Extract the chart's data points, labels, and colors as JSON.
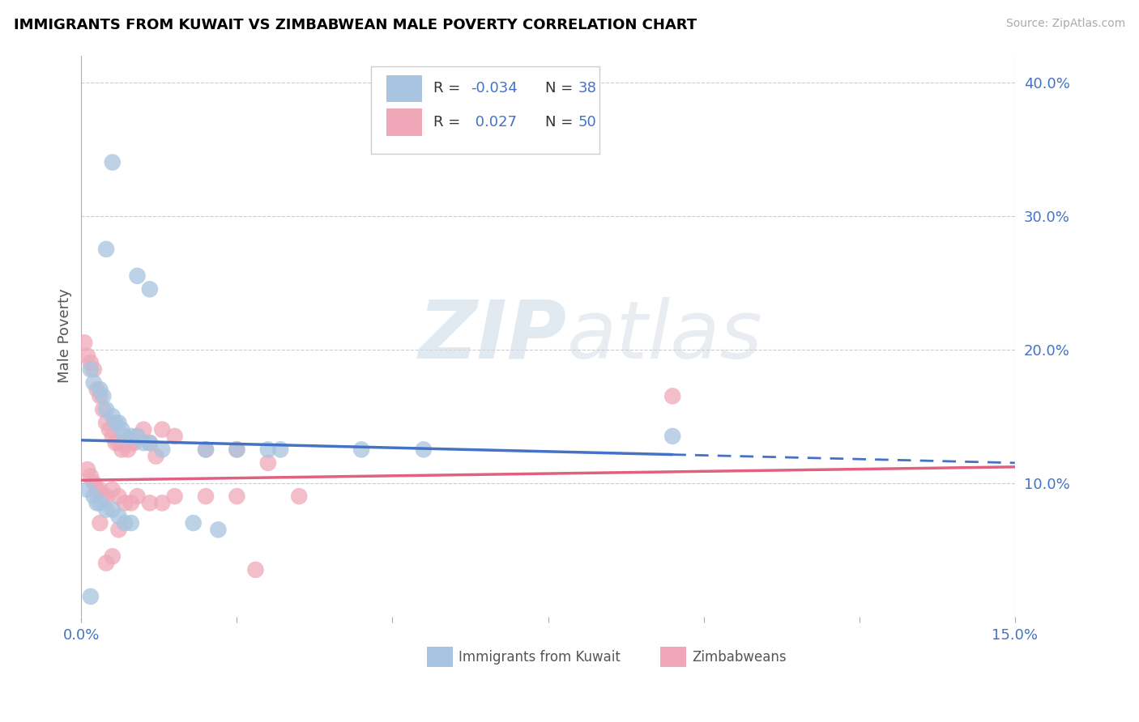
{
  "title": "IMMIGRANTS FROM KUWAIT VS ZIMBABWEAN MALE POVERTY CORRELATION CHART",
  "source": "Source: ZipAtlas.com",
  "ylabel": "Male Poverty",
  "xlim": [
    0,
    15
  ],
  "ylim": [
    0,
    42
  ],
  "blue_color": "#a8c4e0",
  "pink_color": "#f0a8b8",
  "trend_blue": "#4472c4",
  "trend_pink": "#e06080",
  "watermark_zip": "ZIP",
  "watermark_atlas": "atlas",
  "blue_scatter_x": [
    0.5,
    0.4,
    0.9,
    1.1,
    0.15,
    0.2,
    0.3,
    0.35,
    0.4,
    0.5,
    0.55,
    0.6,
    0.65,
    0.7,
    0.8,
    0.9,
    1.0,
    1.1,
    1.3,
    2.0,
    2.5,
    3.0,
    3.2,
    4.5,
    5.5,
    9.5,
    0.1,
    0.2,
    0.25,
    0.3,
    0.4,
    0.5,
    0.6,
    0.7,
    0.8,
    1.8,
    2.2,
    0.15
  ],
  "blue_scatter_y": [
    34.0,
    27.5,
    25.5,
    24.5,
    18.5,
    17.5,
    17.0,
    16.5,
    15.5,
    15.0,
    14.5,
    14.5,
    14.0,
    13.5,
    13.5,
    13.5,
    13.0,
    13.0,
    12.5,
    12.5,
    12.5,
    12.5,
    12.5,
    12.5,
    12.5,
    13.5,
    9.5,
    9.0,
    8.5,
    8.5,
    8.0,
    8.0,
    7.5,
    7.0,
    7.0,
    7.0,
    6.5,
    1.5
  ],
  "pink_scatter_x": [
    0.05,
    0.1,
    0.15,
    0.2,
    0.25,
    0.3,
    0.35,
    0.4,
    0.45,
    0.5,
    0.55,
    0.6,
    0.65,
    0.7,
    0.75,
    0.8,
    0.85,
    0.9,
    1.0,
    1.1,
    1.2,
    1.3,
    1.5,
    2.0,
    2.5,
    3.0,
    0.1,
    0.15,
    0.2,
    0.25,
    0.3,
    0.35,
    0.4,
    0.5,
    0.6,
    0.7,
    0.8,
    0.9,
    1.1,
    1.3,
    1.5,
    2.0,
    2.5,
    3.5,
    9.5,
    0.3,
    0.6,
    0.5,
    0.4,
    2.8
  ],
  "pink_scatter_y": [
    20.5,
    19.5,
    19.0,
    18.5,
    17.0,
    16.5,
    15.5,
    14.5,
    14.0,
    13.5,
    13.0,
    13.0,
    12.5,
    13.0,
    12.5,
    13.0,
    13.0,
    13.5,
    14.0,
    13.0,
    12.0,
    14.0,
    13.5,
    12.5,
    12.5,
    11.5,
    11.0,
    10.5,
    10.0,
    9.5,
    9.5,
    9.0,
    9.0,
    9.5,
    9.0,
    8.5,
    8.5,
    9.0,
    8.5,
    8.5,
    9.0,
    9.0,
    9.0,
    9.0,
    16.5,
    7.0,
    6.5,
    4.5,
    4.0,
    3.5
  ],
  "blue_trend_start_y": 13.2,
  "blue_trend_end_y": 11.5,
  "pink_trend_start_y": 10.2,
  "pink_trend_end_y": 11.2,
  "blue_solid_end_x": 9.5,
  "xtick_positions": [
    0,
    2.5,
    5.0,
    7.5,
    10.0,
    12.5,
    15.0
  ]
}
